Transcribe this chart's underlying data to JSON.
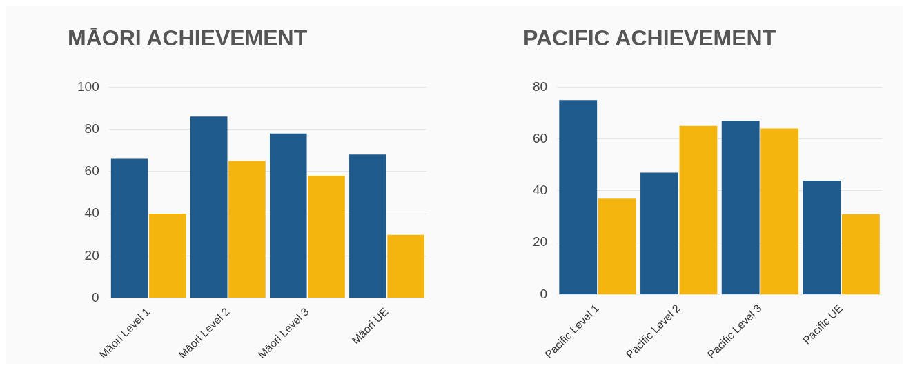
{
  "chart_data": [
    {
      "type": "bar",
      "title": "MĀORI ACHIEVEMENT",
      "categories": [
        "Māori Level 1",
        "Māori Level 2",
        "Māori Level 3",
        "Māori UE"
      ],
      "series": [
        {
          "color": "#1f5a8c",
          "values": [
            66,
            86,
            78,
            68
          ]
        },
        {
          "color": "#f5b50f",
          "values": [
            40,
            65,
            58,
            30
          ]
        }
      ],
      "ylim": [
        0,
        100
      ],
      "yticks": [
        0,
        20,
        40,
        60,
        80,
        100
      ],
      "grid": "y",
      "legend": false
    },
    {
      "type": "bar",
      "title": "PACIFIC ACHIEVEMENT",
      "categories": [
        "Pacific Level 1",
        "Pacific Level 2",
        "Pacific Level 3",
        "Pacific UE"
      ],
      "series": [
        {
          "color": "#1f5a8c",
          "values": [
            75,
            47,
            67,
            44
          ]
        },
        {
          "color": "#f5b50f",
          "values": [
            37,
            65,
            64,
            31
          ]
        }
      ],
      "ylim": [
        0,
        80
      ],
      "yticks": [
        0,
        20,
        40,
        60,
        80
      ],
      "grid": "y",
      "legend": false
    }
  ]
}
